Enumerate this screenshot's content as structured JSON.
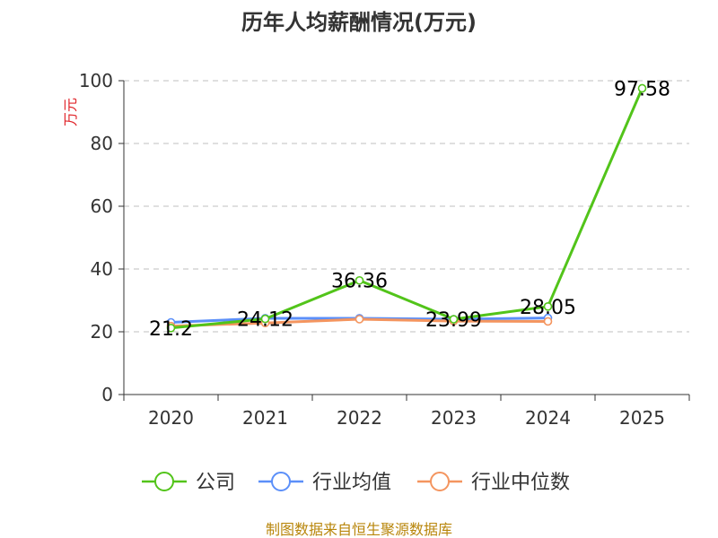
{
  "chart_data": {
    "type": "line",
    "title": "历年人均薪酬情况(万元)",
    "ylabel": "万元",
    "xlabel": "",
    "categories": [
      "2020",
      "2021",
      "2022",
      "2023",
      "2024",
      "2025"
    ],
    "ylim": [
      0,
      100
    ],
    "yticks": [
      0,
      20,
      40,
      60,
      80,
      100
    ],
    "grid": true,
    "legend_position": "bottom",
    "series": [
      {
        "name": "公司",
        "color": "#52c41a",
        "values": [
          21.2,
          24.12,
          36.36,
          23.99,
          28.05,
          97.58
        ],
        "show_labels": true
      },
      {
        "name": "行业均值",
        "color": "#5b8ff9",
        "values": [
          23.0,
          24.3,
          24.3,
          24.0,
          24.4,
          null
        ],
        "show_labels": false
      },
      {
        "name": "行业中位数",
        "color": "#f4955f",
        "values": [
          21.8,
          22.8,
          24.0,
          23.4,
          23.3,
          null
        ],
        "show_labels": false
      }
    ],
    "source": "制图数据来自恒生聚源数据库"
  }
}
